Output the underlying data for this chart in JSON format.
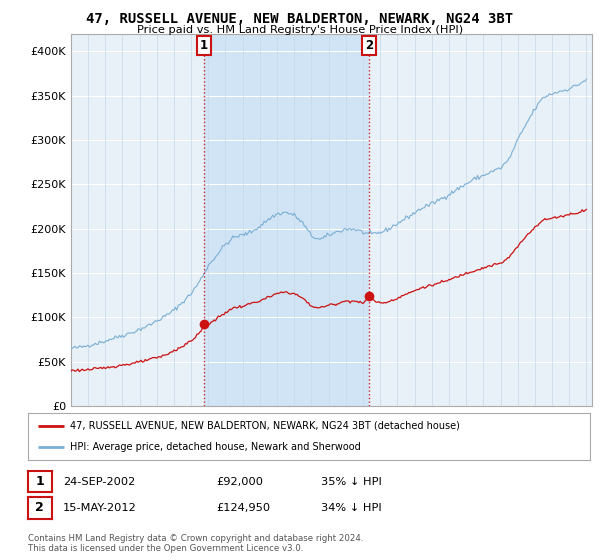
{
  "title": "47, RUSSELL AVENUE, NEW BALDERTON, NEWARK, NG24 3BT",
  "subtitle": "Price paid vs. HM Land Registry's House Price Index (HPI)",
  "ylim": [
    0,
    420000
  ],
  "yticks": [
    0,
    50000,
    100000,
    150000,
    200000,
    250000,
    300000,
    350000,
    400000
  ],
  "ytick_labels": [
    "£0",
    "£50K",
    "£100K",
    "£150K",
    "£200K",
    "£250K",
    "£300K",
    "£350K",
    "£400K"
  ],
  "hpi_color": "#7bafd4",
  "price_color": "#cc1111",
  "bg_color": "#e8f0f8",
  "shade_color": "#d0e4f5",
  "grid_color": "#c8d8e8",
  "marker1_price": 92000,
  "marker2_price": 124950,
  "legend_line1": "47, RUSSELL AVENUE, NEW BALDERTON, NEWARK, NG24 3BT (detached house)",
  "legend_line2": "HPI: Average price, detached house, Newark and Sherwood",
  "table_row1": [
    "1",
    "24-SEP-2002",
    "£92,000",
    "35% ↓ HPI"
  ],
  "table_row2": [
    "2",
    "15-MAY-2012",
    "£124,950",
    "34% ↓ HPI"
  ],
  "footer": "Contains HM Land Registry data © Crown copyright and database right 2024.\nThis data is licensed under the Open Government Licence v3.0.",
  "xlim_start": 1995.0,
  "xlim_end": 2025.3,
  "sale1_x": 2002.75,
  "sale2_x": 2012.37
}
